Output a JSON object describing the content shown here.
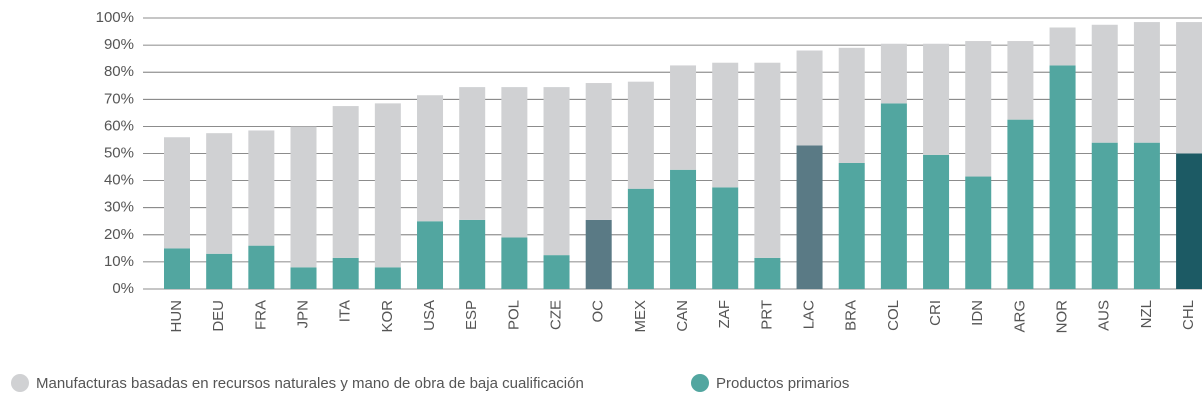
{
  "chart_data": {
    "type": "stacked_bar",
    "categories": [
      "HUN",
      "DEU",
      "FRA",
      "JPN",
      "ITA",
      "KOR",
      "USA",
      "ESP",
      "POL",
      "CZE",
      "OC",
      "MEX",
      "CAN",
      "ZAF",
      "PRT",
      "LAC",
      "BRA",
      "COL",
      "CRI",
      "IDN",
      "ARG",
      "NOR",
      "AUS",
      "NZL",
      "CHL"
    ],
    "series": [
      {
        "name": "Manufacturas basadas en recursos naturales y mano de obra de baja cualificación",
        "color": "#d0d1d3",
        "values": [
          41,
          44.5,
          42.5,
          52,
          56,
          60.5,
          46.5,
          49,
          55.5,
          62,
          50.5,
          39.5,
          38.5,
          46,
          72,
          35,
          42.5,
          22,
          41,
          50,
          29,
          14,
          43.5,
          44.5,
          48.5
        ]
      },
      {
        "name": "Productos primarios",
        "color": "#52a6a0",
        "colors": [
          "#52a6a0",
          "#52a6a0",
          "#52a6a0",
          "#52a6a0",
          "#52a6a0",
          "#52a6a0",
          "#52a6a0",
          "#52a6a0",
          "#52a6a0",
          "#52a6a0",
          "#5a7a85",
          "#52a6a0",
          "#52a6a0",
          "#52a6a0",
          "#52a6a0",
          "#5a7a85",
          "#52a6a0",
          "#52a6a0",
          "#52a6a0",
          "#52a6a0",
          "#52a6a0",
          "#52a6a0",
          "#52a6a0",
          "#52a6a0",
          "#1c5a64"
        ],
        "values": [
          15,
          13,
          16,
          8,
          11.5,
          8,
          25,
          25.5,
          19,
          12.5,
          25.5,
          37,
          44,
          37.5,
          11.5,
          53,
          46.5,
          68.5,
          49.5,
          41.5,
          62.5,
          82.5,
          54,
          54,
          50
        ]
      }
    ],
    "ylim": [
      0,
      100
    ],
    "yticks": [
      {
        "value": 0,
        "label": "0%"
      },
      {
        "value": 10,
        "label": "10%"
      },
      {
        "value": 20,
        "label": "20%"
      },
      {
        "value": 30,
        "label": "30%"
      },
      {
        "value": 40,
        "label": "40%"
      },
      {
        "value": 50,
        "label": "50%"
      },
      {
        "value": 60,
        "label": "60%"
      },
      {
        "value": 70,
        "label": "70%"
      },
      {
        "value": 80,
        "label": "80%"
      },
      {
        "value": 90,
        "label": "90%"
      },
      {
        "value": 100,
        "label": "100%"
      }
    ],
    "grid": true,
    "legend": "bottom"
  }
}
